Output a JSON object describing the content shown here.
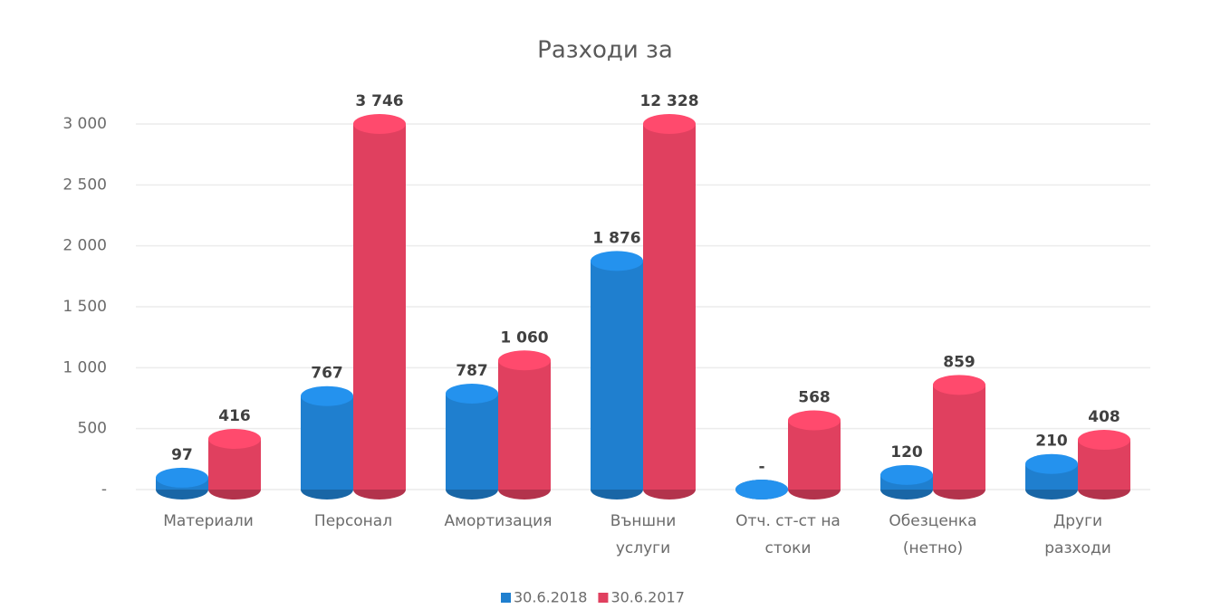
{
  "chart_data": {
    "type": "bar",
    "title": "Разходи за",
    "categories": [
      "Материали",
      "Персонал",
      "Амортизация",
      "Външни\nуслуги",
      "Отч. ст-ст на\nстоки",
      "Обезценка\n(нетно)",
      "Други\nразходи"
    ],
    "series": [
      {
        "name": "30.6.2018",
        "color": "#1f7fcf",
        "values": [
          97,
          767,
          787,
          1876,
          0,
          120,
          210
        ],
        "value_labels": [
          "97",
          "767",
          "787",
          "1 876",
          "-",
          "120",
          "210"
        ]
      },
      {
        "name": "30.6.2017",
        "color": "#e0405f",
        "values": [
          416,
          3746,
          1060,
          12328,
          568,
          859,
          408
        ],
        "value_labels": [
          "416",
          "3 746",
          "1 060",
          "12 328",
          "568",
          "859",
          "408"
        ]
      }
    ],
    "ylim": [
      0,
      3000
    ],
    "yticks": [
      {
        "value": 0,
        "label": "-"
      },
      500,
      {
        "value": 1000,
        "label": "1 000"
      },
      {
        "value": 1500,
        "label": "1 500"
      },
      {
        "value": 2000,
        "label": "2 000"
      },
      {
        "value": 2500,
        "label": "2 500"
      },
      {
        "value": 3000,
        "label": "3 000"
      }
    ],
    "grid": true,
    "legend": "bottom"
  }
}
